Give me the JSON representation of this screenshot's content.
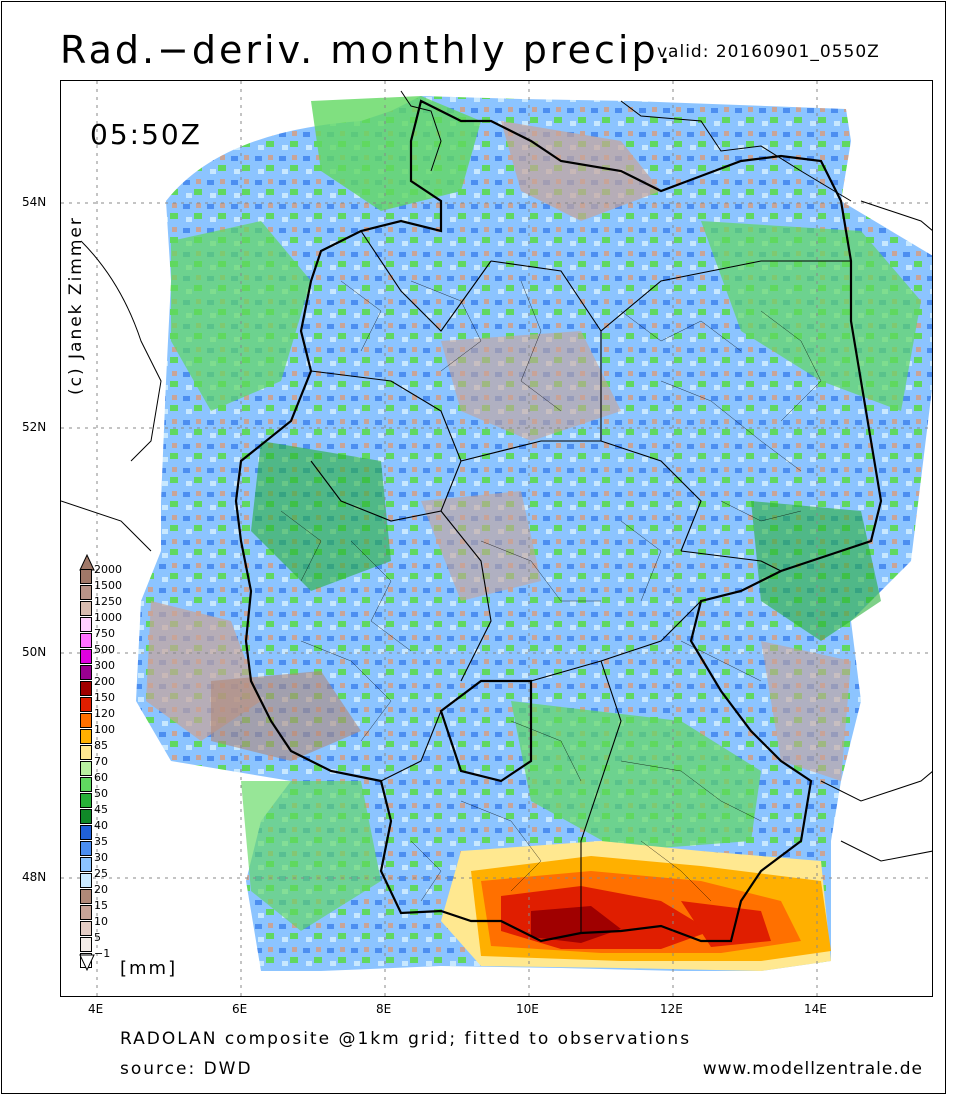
{
  "title": "Rad.−deriv. monthly precip.",
  "valid": "valid: 20160901_0550Z",
  "time_label": "05:50Z",
  "copyright": "(c) Janek Zimmer",
  "lat_labels": [
    "54N",
    "52N",
    "50N",
    "48N"
  ],
  "lon_labels": [
    "4E",
    "6E",
    "8E",
    "10E",
    "12E",
    "14E"
  ],
  "legend": {
    "unit": "[mm]",
    "items": [
      {
        "label": "2000",
        "color": "#a07868"
      },
      {
        "label": "1500",
        "color": "#b89488"
      },
      {
        "label": "1250",
        "color": "#d8bcb0"
      },
      {
        "label": "1000",
        "color": "#ffd0ff"
      },
      {
        "label": "750",
        "color": "#ff70ff"
      },
      {
        "label": "500",
        "color": "#e000e0"
      },
      {
        "label": "300",
        "color": "#9a0090"
      },
      {
        "label": "200",
        "color": "#a00000"
      },
      {
        "label": "150",
        "color": "#e01e00"
      },
      {
        "label": "120",
        "color": "#ff7000"
      },
      {
        "label": "100",
        "color": "#ffb000"
      },
      {
        "label": "85",
        "color": "#ffe890"
      },
      {
        "label": "70",
        "color": "#b8f0a0"
      },
      {
        "label": "60",
        "color": "#60d860"
      },
      {
        "label": "50",
        "color": "#28b038"
      },
      {
        "label": "45",
        "color": "#108828"
      },
      {
        "label": "40",
        "color": "#2060d8"
      },
      {
        "label": "35",
        "color": "#4c8ef0"
      },
      {
        "label": "30",
        "color": "#8cc4ff"
      },
      {
        "label": "25",
        "color": "#c8e8ff"
      },
      {
        "label": "20",
        "color": "#b08878"
      },
      {
        "label": "15",
        "color": "#c8a498"
      },
      {
        "label": "10",
        "color": "#e4ccc4"
      },
      {
        "label": "5",
        "color": "#f4ece8"
      },
      {
        "label": "−1",
        "color": "#ffffff"
      }
    ]
  },
  "footer_line1": "RADOLAN composite @1km grid; fitted to observations",
  "footer_line2": "source: DWD",
  "website": "www.modellzentrale.de"
}
